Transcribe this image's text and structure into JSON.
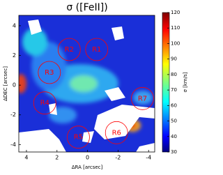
{
  "chart_data": {
    "type": "image",
    "title": "σ ([FeII])",
    "xlabel": "ΔRA [arcsec]",
    "ylabel": "ΔDEC [arcsec]",
    "colorbar_label": "σ [km/s]",
    "xlim": [
      4.5,
      -4.4
    ],
    "xticks": [
      4,
      2,
      0,
      -2,
      -4
    ],
    "ylim": [
      -4.5,
      4.7
    ],
    "yticks": [
      -4,
      -2,
      0,
      2,
      4
    ],
    "clim": [
      30,
      120
    ],
    "cticks": [
      30,
      40,
      50,
      60,
      70,
      80,
      90,
      100,
      110,
      120
    ],
    "colormap": "jet",
    "annotations": [
      {
        "text": "R1",
        "x": -0.6,
        "y": 2.4
      },
      {
        "text": "R2",
        "x": 1.2,
        "y": 2.4
      },
      {
        "text": "R3",
        "x": 2.5,
        "y": 0.85
      },
      {
        "text": "R4",
        "x": 2.8,
        "y": -1.2
      },
      {
        "text": "R5",
        "x": 0.6,
        "y": -3.5
      },
      {
        "text": "R6",
        "x": -1.9,
        "y": -3.2
      },
      {
        "text": "R7",
        "x": -3.6,
        "y": -0.9
      }
    ],
    "annotation_color": "#ff0000"
  }
}
